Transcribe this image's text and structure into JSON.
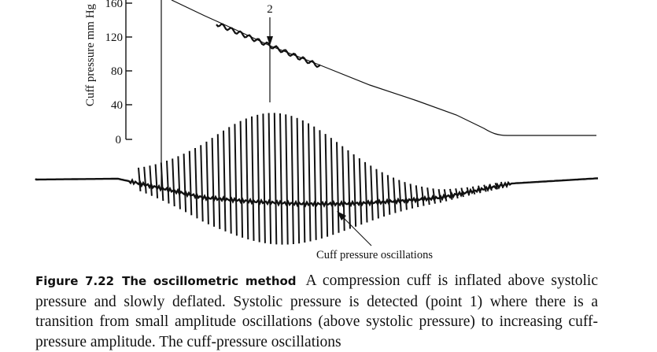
{
  "figure": {
    "y_axis_label": "Cuff pressure mm Hg",
    "y_ticks": [
      "160",
      "120",
      "80",
      "40",
      "0"
    ],
    "point_label": "2",
    "oscillation_label": "Cuff pressure oscillations"
  },
  "caption": {
    "figure_number": "Figure 7.22",
    "figure_title": "The oscillometric method",
    "text": "A compression cuff is inflated above systolic pressure and slowly deflated. Systolic pressure is detected (point 1) where there is a transition from small amplitude oscillations (above systolic pressure) to increasing cuff-pressure amplitude. The cuff-pressure oscillations"
  }
}
